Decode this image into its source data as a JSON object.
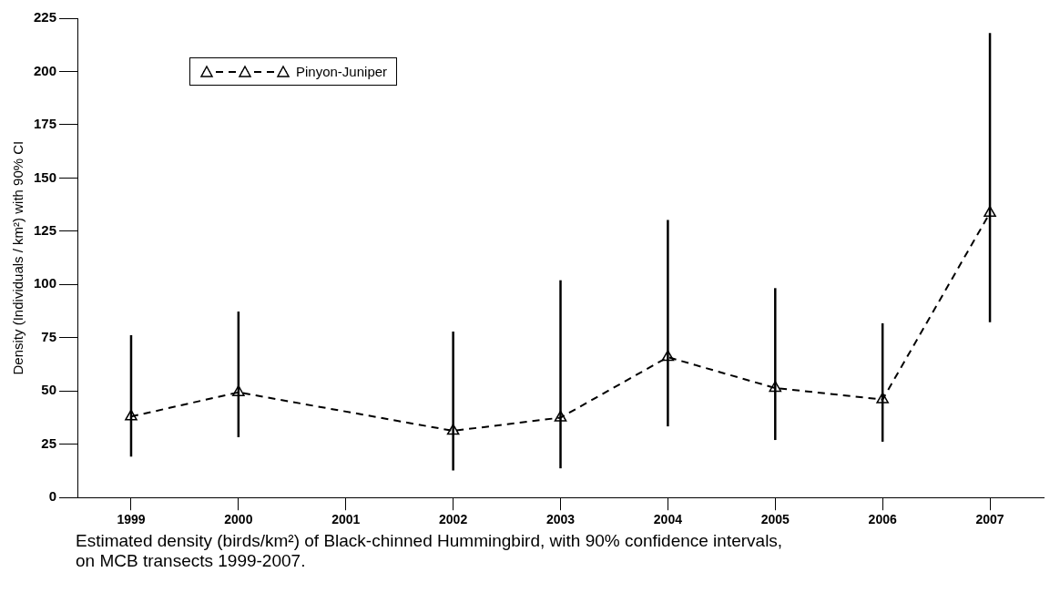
{
  "chart_data": {
    "type": "line",
    "categories": [
      "1999",
      "2000",
      "2001",
      "2002",
      "2003",
      "2004",
      "2005",
      "2006",
      "2007"
    ],
    "series": [
      {
        "name": "Pinyon-Juniper",
        "color": "#000000",
        "values": [
          38,
          49.4,
          null,
          31.3,
          37.5,
          65.9,
          51.4,
          46,
          133.6
        ],
        "errors": [
          [
            19.2,
            76.2
          ],
          [
            28.3,
            87.3
          ],
          null,
          [
            12.7,
            77.9
          ],
          [
            13.7,
            102
          ],
          [
            33.4,
            130.3
          ],
          [
            27,
            98.3
          ],
          [
            26.2,
            81.8
          ],
          [
            82.3,
            218
          ]
        ]
      }
    ],
    "ylabel": "Density (Individuals / km²) with 90% CI",
    "ylim": [
      0,
      225
    ],
    "yticks": [
      0,
      25,
      50,
      75,
      100,
      125,
      150,
      175,
      200,
      225
    ],
    "grid": false,
    "legend": "top left",
    "marker": "triangle",
    "line_style": "dashed",
    "annotations": [
      "Estimated density (birds/km²) of Black-chinned Hummingbird, with 90% confidence intervals, on MCB transects 1999-2007."
    ]
  }
}
